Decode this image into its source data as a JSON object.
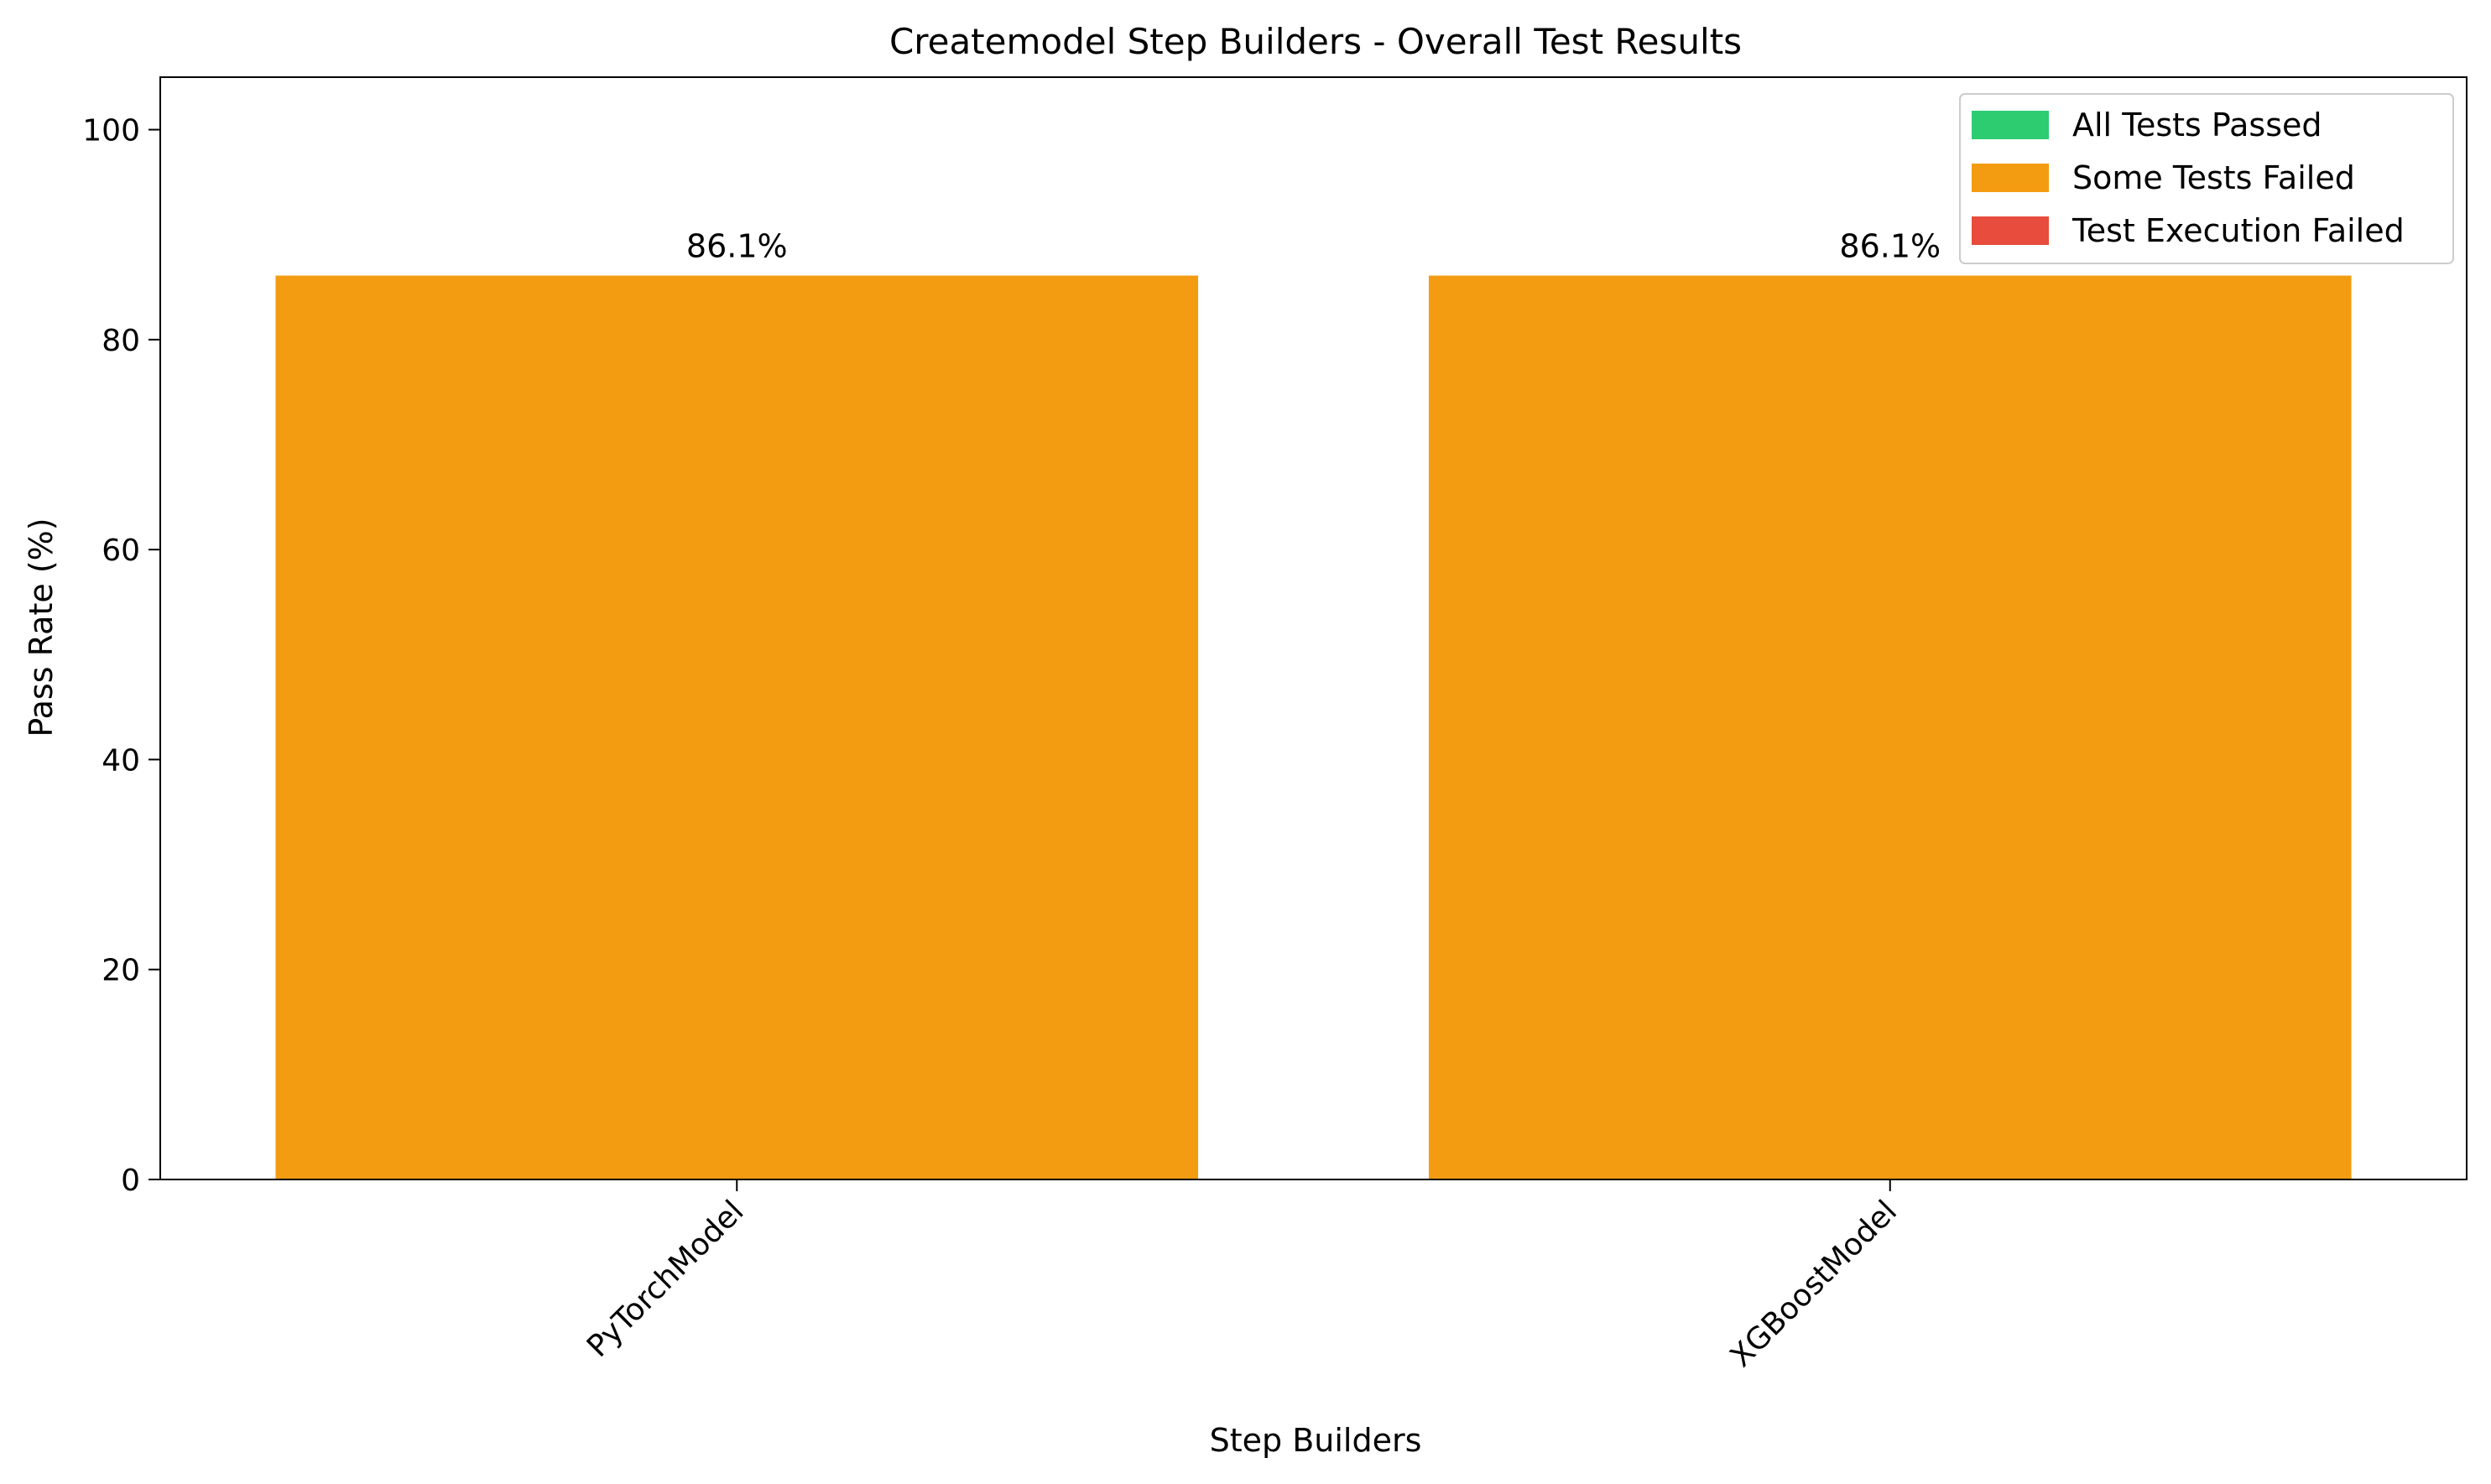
{
  "chart_data": {
    "type": "bar",
    "title": "Createmodel Step Builders - Overall Test Results",
    "xlabel": "Step Builders",
    "ylabel": "Pass Rate (%)",
    "categories": [
      "PyTorchModel",
      "XGBoostModel"
    ],
    "values": [
      86.1,
      86.1
    ],
    "value_labels": [
      "86.1%",
      "86.1%"
    ],
    "bar_colors": [
      "#f39c12",
      "#f39c12"
    ],
    "ylim": [
      0,
      105
    ],
    "yticks": [
      0,
      20,
      40,
      60,
      80,
      100
    ],
    "grid": false,
    "legend": {
      "position": "top-right",
      "entries": [
        {
          "label": "All Tests Passed",
          "color": "#2ecc71"
        },
        {
          "label": "Some Tests Failed",
          "color": "#f39c12"
        },
        {
          "label": "Test Execution Failed",
          "color": "#e74c3c"
        }
      ]
    }
  }
}
